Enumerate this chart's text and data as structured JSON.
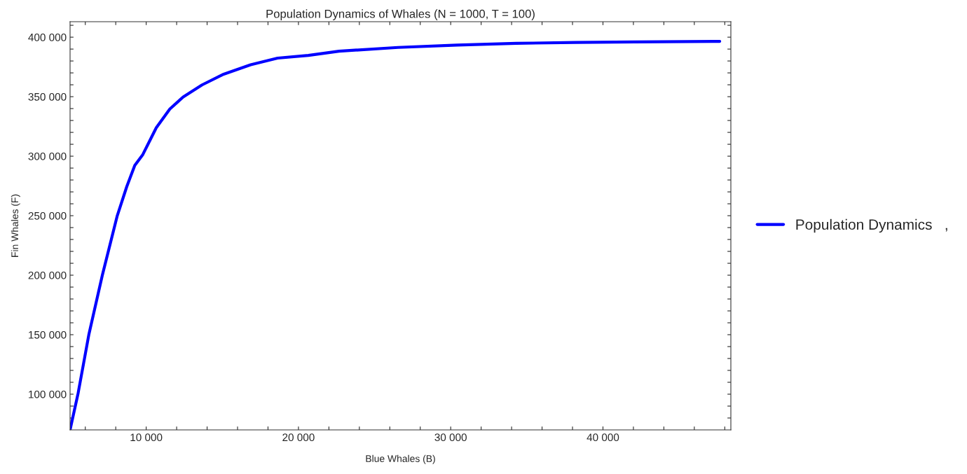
{
  "chart_data": {
    "type": "line",
    "title": "Population Dynamics of Whales (N = 1000, T = 100)",
    "xlabel": "Blue Whales (B)",
    "ylabel": "Fin Whales (F)",
    "xlim": [
      5000,
      48400
    ],
    "ylim": [
      70000,
      413000
    ],
    "xticks": [
      {
        "value": 6000,
        "label": null
      },
      {
        "value": 8000,
        "label": null
      },
      {
        "value": 10000,
        "label": "10 000"
      },
      {
        "value": 12000,
        "label": null
      },
      {
        "value": 14000,
        "label": null
      },
      {
        "value": 16000,
        "label": null
      },
      {
        "value": 18000,
        "label": null
      },
      {
        "value": 20000,
        "label": "20 000"
      },
      {
        "value": 22000,
        "label": null
      },
      {
        "value": 24000,
        "label": null
      },
      {
        "value": 26000,
        "label": null
      },
      {
        "value": 28000,
        "label": null
      },
      {
        "value": 30000,
        "label": "30 000"
      },
      {
        "value": 32000,
        "label": null
      },
      {
        "value": 34000,
        "label": null
      },
      {
        "value": 36000,
        "label": null
      },
      {
        "value": 38000,
        "label": null
      },
      {
        "value": 40000,
        "label": "40 000"
      },
      {
        "value": 42000,
        "label": null
      },
      {
        "value": 44000,
        "label": null
      },
      {
        "value": 46000,
        "label": null
      },
      {
        "value": 48000,
        "label": null
      }
    ],
    "yticks": [
      {
        "value": 80000,
        "label": null
      },
      {
        "value": 90000,
        "label": null
      },
      {
        "value": 100000,
        "label": "100 000"
      },
      {
        "value": 110000,
        "label": null
      },
      {
        "value": 120000,
        "label": null
      },
      {
        "value": 130000,
        "label": null
      },
      {
        "value": 140000,
        "label": null
      },
      {
        "value": 150000,
        "label": "150 000"
      },
      {
        "value": 160000,
        "label": null
      },
      {
        "value": 170000,
        "label": null
      },
      {
        "value": 180000,
        "label": null
      },
      {
        "value": 190000,
        "label": null
      },
      {
        "value": 200000,
        "label": "200 000"
      },
      {
        "value": 210000,
        "label": null
      },
      {
        "value": 220000,
        "label": null
      },
      {
        "value": 230000,
        "label": null
      },
      {
        "value": 240000,
        "label": null
      },
      {
        "value": 250000,
        "label": "250 000"
      },
      {
        "value": 260000,
        "label": null
      },
      {
        "value": 270000,
        "label": null
      },
      {
        "value": 280000,
        "label": null
      },
      {
        "value": 290000,
        "label": null
      },
      {
        "value": 300000,
        "label": "300 000"
      },
      {
        "value": 310000,
        "label": null
      },
      {
        "value": 320000,
        "label": null
      },
      {
        "value": 330000,
        "label": null
      },
      {
        "value": 340000,
        "label": null
      },
      {
        "value": 350000,
        "label": "350 000"
      },
      {
        "value": 360000,
        "label": null
      },
      {
        "value": 370000,
        "label": null
      },
      {
        "value": 380000,
        "label": null
      },
      {
        "value": 390000,
        "label": null
      },
      {
        "value": 400000,
        "label": "400 000"
      },
      {
        "value": 410000,
        "label": null
      }
    ],
    "grid": false,
    "legend": "right",
    "marker": "none",
    "line_style": "solid",
    "series": [
      {
        "name": "Population Dynamics   ,",
        "color": "#0000ff",
        "x": [
          5000,
          5530,
          6240,
          7120,
          8100,
          8720,
          9250,
          9780,
          10660,
          11550,
          12430,
          13670,
          15090,
          16860,
          18630,
          20650,
          22660,
          26540,
          30430,
          34310,
          38190,
          42080,
          47670
        ],
        "values": [
          70000,
          100900,
          150500,
          200000,
          250000,
          274300,
          292300,
          301400,
          323900,
          339600,
          349800,
          359900,
          368900,
          376800,
          382400,
          384700,
          388200,
          391400,
          393400,
          394800,
          395600,
          396000,
          396500
        ]
      }
    ]
  }
}
